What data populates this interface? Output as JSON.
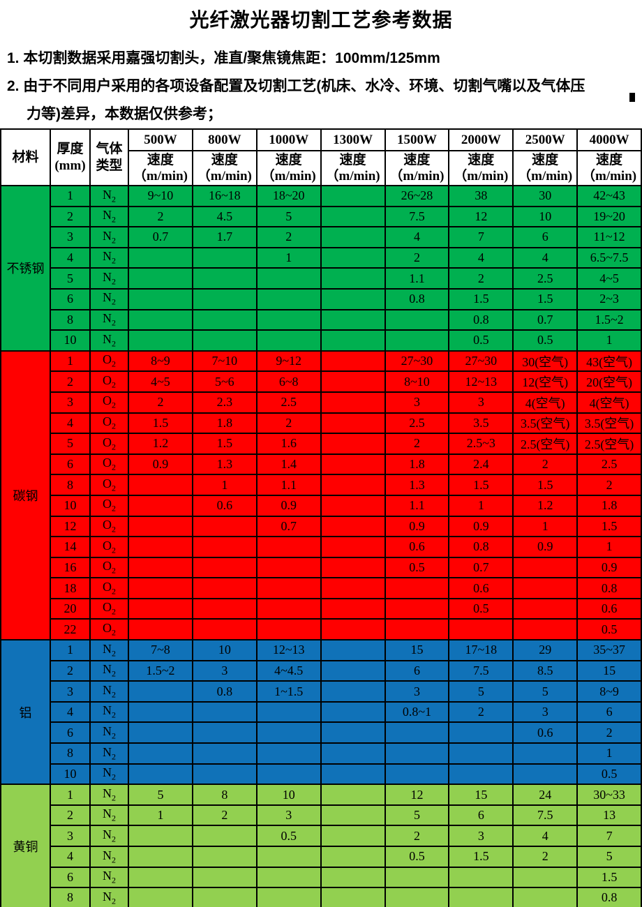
{
  "title": "光纤激光器切割工艺参考数据",
  "notes": [
    "1. 本切割数据采用嘉强切割头，准直/聚焦镜焦距：100mm/125mm",
    "2. 由于不同用户采用的各项设备配置及切割工艺(机床、水冷、环境、切割气嘴以及气体压",
    "力等)差异，本数据仅供参考；"
  ],
  "colors": {
    "stainless_green": "#00b050",
    "carbon_red": "#ff0000",
    "aluminum_blue": "#1072b8",
    "brass_green": "#92d050",
    "border_black": "#000000",
    "header_white": "#ffffff"
  },
  "table": {
    "header": {
      "material": "材料",
      "thickness_label": "厚度",
      "thickness_unit": "(mm)",
      "gas_label_line1": "气体",
      "gas_label_line2": "类型",
      "powers": [
        "500W",
        "800W",
        "1000W",
        "1300W",
        "1500W",
        "2000W",
        "2500W",
        "4000W"
      ],
      "speed_label": "速度",
      "speed_unit": "（m/min)"
    },
    "sections": [
      {
        "material": "不锈钢",
        "color": "#00b050",
        "rows": [
          {
            "thickness": "1",
            "gas": "N2",
            "speeds": [
              "9~10",
              "16~18",
              "18~20",
              "",
              "26~28",
              "38",
              "30",
              "42~43"
            ]
          },
          {
            "thickness": "2",
            "gas": "N2",
            "speeds": [
              "2",
              "4.5",
              "5",
              "",
              "7.5",
              "12",
              "10",
              "19~20"
            ]
          },
          {
            "thickness": "3",
            "gas": "N2",
            "speeds": [
              "0.7",
              "1.7",
              "2",
              "",
              "4",
              "7",
              "6",
              "11~12"
            ]
          },
          {
            "thickness": "4",
            "gas": "N2",
            "speeds": [
              "",
              "",
              "1",
              "",
              "2",
              "4",
              "4",
              "6.5~7.5"
            ]
          },
          {
            "thickness": "5",
            "gas": "N2",
            "speeds": [
              "",
              "",
              "",
              "",
              "1.1",
              "2",
              "2.5",
              "4~5"
            ]
          },
          {
            "thickness": "6",
            "gas": "N2",
            "speeds": [
              "",
              "",
              "",
              "",
              "0.8",
              "1.5",
              "1.5",
              "2~3"
            ]
          },
          {
            "thickness": "8",
            "gas": "N2",
            "speeds": [
              "",
              "",
              "",
              "",
              "",
              "0.8",
              "0.7",
              "1.5~2"
            ]
          },
          {
            "thickness": "10",
            "gas": "N2",
            "speeds": [
              "",
              "",
              "",
              "",
              "",
              "0.5",
              "0.5",
              "1"
            ]
          }
        ]
      },
      {
        "material": "碳钢",
        "color": "#ff0000",
        "rows": [
          {
            "thickness": "1",
            "gas": "O2",
            "speeds": [
              "8~9",
              "7~10",
              "9~12",
              "",
              "27~30",
              "27~30",
              "30(空气)",
              "43(空气)"
            ]
          },
          {
            "thickness": "2",
            "gas": "O2",
            "speeds": [
              "4~5",
              "5~6",
              "6~8",
              "",
              "8~10",
              "12~13",
              "12(空气)",
              "20(空气)"
            ]
          },
          {
            "thickness": "3",
            "gas": "O2",
            "speeds": [
              "2",
              "2.3",
              "2.5",
              "",
              "3",
              "3",
              "4(空气)",
              "4(空气)"
            ]
          },
          {
            "thickness": "4",
            "gas": "O2",
            "speeds": [
              "1.5",
              "1.8",
              "2",
              "",
              "2.5",
              "3.5",
              "3.5(空气)",
              "3.5(空气)"
            ]
          },
          {
            "thickness": "5",
            "gas": "O2",
            "speeds": [
              "1.2",
              "1.5",
              "1.6",
              "",
              "2",
              "2.5~3",
              "2.5(空气)",
              "2.5(空气)"
            ]
          },
          {
            "thickness": "6",
            "gas": "O2",
            "speeds": [
              "0.9",
              "1.3",
              "1.4",
              "",
              "1.8",
              "2.4",
              "2",
              "2.5"
            ]
          },
          {
            "thickness": "8",
            "gas": "O2",
            "speeds": [
              "",
              "1",
              "1.1",
              "",
              "1.3",
              "1.5",
              "1.5",
              "2"
            ]
          },
          {
            "thickness": "10",
            "gas": "O2",
            "speeds": [
              "",
              "0.6",
              "0.9",
              "",
              "1.1",
              "1",
              "1.2",
              "1.8"
            ]
          },
          {
            "thickness": "12",
            "gas": "O2",
            "speeds": [
              "",
              "",
              "0.7",
              "",
              "0.9",
              "0.9",
              "1",
              "1.5"
            ]
          },
          {
            "thickness": "14",
            "gas": "O2",
            "speeds": [
              "",
              "",
              "",
              "",
              "0.6",
              "0.8",
              "0.9",
              "1"
            ]
          },
          {
            "thickness": "16",
            "gas": "O2",
            "speeds": [
              "",
              "",
              "",
              "",
              "0.5",
              "0.7",
              "",
              "0.9"
            ]
          },
          {
            "thickness": "18",
            "gas": "O2",
            "speeds": [
              "",
              "",
              "",
              "",
              "",
              "0.6",
              "",
              "0.8"
            ]
          },
          {
            "thickness": "20",
            "gas": "O2",
            "speeds": [
              "",
              "",
              "",
              "",
              "",
              "0.5",
              "",
              "0.6"
            ]
          },
          {
            "thickness": "22",
            "gas": "O2",
            "speeds": [
              "",
              "",
              "",
              "",
              "",
              "",
              "",
              "0.5"
            ]
          }
        ]
      },
      {
        "material": "铝",
        "color": "#1072b8",
        "rows": [
          {
            "thickness": "1",
            "gas": "N2",
            "speeds": [
              "7~8",
              "10",
              "12~13",
              "",
              "15",
              "17~18",
              "29",
              "35~37"
            ]
          },
          {
            "thickness": "2",
            "gas": "N2",
            "speeds": [
              "1.5~2",
              "3",
              "4~4.5",
              "",
              "6",
              "7.5",
              "8.5",
              "15"
            ]
          },
          {
            "thickness": "3",
            "gas": "N2",
            "speeds": [
              "",
              "0.8",
              "1~1.5",
              "",
              "3",
              "5",
              "5",
              "8~9"
            ]
          },
          {
            "thickness": "4",
            "gas": "N2",
            "speeds": [
              "",
              "",
              "",
              "",
              "0.8~1",
              "2",
              "3",
              "6"
            ]
          },
          {
            "thickness": "6",
            "gas": "N2",
            "speeds": [
              "",
              "",
              "",
              "",
              "",
              "",
              "0.6",
              "2"
            ]
          },
          {
            "thickness": "8",
            "gas": "N2",
            "speeds": [
              "",
              "",
              "",
              "",
              "",
              "",
              "",
              "1"
            ]
          },
          {
            "thickness": "10",
            "gas": "N2",
            "speeds": [
              "",
              "",
              "",
              "",
              "",
              "",
              "",
              "0.5"
            ]
          }
        ]
      },
      {
        "material": "黄铜",
        "color": "#92d050",
        "rows": [
          {
            "thickness": "1",
            "gas": "N2",
            "speeds": [
              "5",
              "8",
              "10",
              "",
              "12",
              "15",
              "24",
              "30~33"
            ]
          },
          {
            "thickness": "2",
            "gas": "N2",
            "speeds": [
              "1",
              "2",
              "3",
              "",
              "5",
              "6",
              "7.5",
              "13"
            ]
          },
          {
            "thickness": "3",
            "gas": "N2",
            "speeds": [
              "",
              "",
              "0.5",
              "",
              "2",
              "3",
              "4",
              "7"
            ]
          },
          {
            "thickness": "4",
            "gas": "N2",
            "speeds": [
              "",
              "",
              "",
              "",
              "0.5",
              "1.5",
              "2",
              "5"
            ]
          },
          {
            "thickness": "6",
            "gas": "N2",
            "speeds": [
              "",
              "",
              "",
              "",
              "",
              "",
              "",
              "1.5"
            ]
          },
          {
            "thickness": "8",
            "gas": "N2",
            "speeds": [
              "",
              "",
              "",
              "",
              "",
              "",
              "",
              "0.8"
            ]
          }
        ]
      }
    ]
  }
}
